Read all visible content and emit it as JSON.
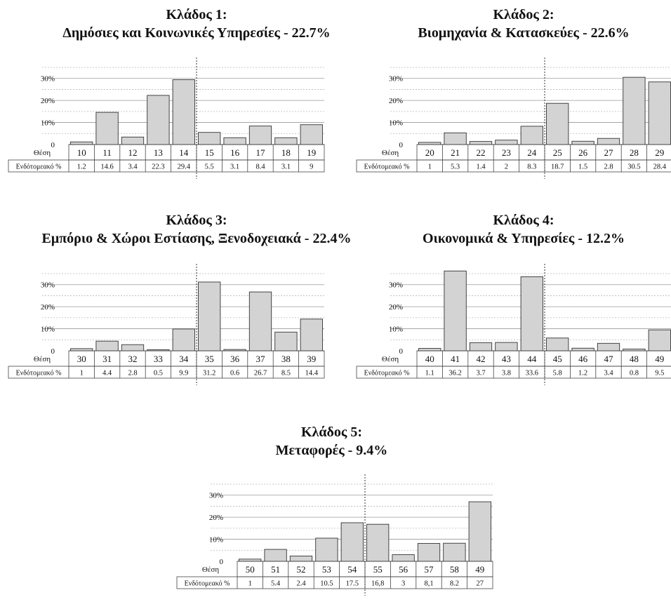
{
  "chart_data": [
    {
      "type": "bar",
      "title_line1": "Κλάδος 1:",
      "title_line2": "Δημόσιες και Κοινωνικές Υπηρεσίες - 22.7%",
      "row1_label": "Θέση",
      "row2_label": "Ενδότομεακό %",
      "y_ticks": [
        "0",
        "10%",
        "20%",
        "30%"
      ],
      "ylim": [
        0,
        35
      ],
      "categories": [
        "10",
        "11",
        "12",
        "13",
        "14",
        "15",
        "16",
        "17",
        "18",
        "19"
      ],
      "values": [
        1.2,
        14.6,
        3.4,
        22.3,
        29.4,
        5.5,
        3.1,
        8.4,
        3.1,
        9
      ],
      "value_labels": [
        "1.2",
        "14.6",
        "3.4",
        "22.3",
        "29.4",
        "5.5",
        "3.1",
        "8.4",
        "3.1",
        "9"
      ],
      "divider_after": 4
    },
    {
      "type": "bar",
      "title_line1": "Κλάδος 2:",
      "title_line2": "Βιομηχανία & Κατασκεύες - 22.6%",
      "row1_label": "Θέση",
      "row2_label": "Ενδότομεακό %",
      "y_ticks": [
        "0",
        "10%",
        "20%",
        "30%"
      ],
      "ylim": [
        0,
        35
      ],
      "categories": [
        "20",
        "21",
        "22",
        "23",
        "24",
        "25",
        "26",
        "27",
        "28",
        "29"
      ],
      "values": [
        1,
        5.3,
        1.4,
        2,
        8.3,
        18.7,
        1.5,
        2.8,
        30.5,
        28.4
      ],
      "value_labels": [
        "1",
        "5.3",
        "1.4",
        "2",
        "8.3",
        "18.7",
        "1.5",
        "2.8",
        "30.5",
        "28.4"
      ],
      "divider_after": 4
    },
    {
      "type": "bar",
      "title_line1": "Κλάδος 3:",
      "title_line2": "Εμπόριο & Χώροι Εστίασης, Ξενοδοχειακά - 22.4%",
      "row1_label": "Θέση",
      "row2_label": "Ενδότομεακό %",
      "y_ticks": [
        "0",
        "10%",
        "20%",
        "30%"
      ],
      "ylim": [
        0,
        35
      ],
      "categories": [
        "30",
        "31",
        "32",
        "33",
        "34",
        "35",
        "36",
        "37",
        "38",
        "39"
      ],
      "values": [
        1,
        4.4,
        2.8,
        0.5,
        9.9,
        31.2,
        0.6,
        26.7,
        8.5,
        14.4
      ],
      "value_labels": [
        "1",
        "4.4",
        "2.8",
        "0.5",
        "9.9",
        "31.2",
        "0.6",
        "26.7",
        "8.5",
        "14.4"
      ],
      "divider_after": 4
    },
    {
      "type": "bar",
      "title_line1": "Κλάδος 4:",
      "title_line2": "Οικονομικά & Υπηρεσίες - 12.2%",
      "row1_label": "Θέση",
      "row2_label": "Ενδότομεακό %",
      "y_ticks": [
        "0",
        "10%",
        "20%",
        "30%"
      ],
      "ylim": [
        0,
        35
      ],
      "categories": [
        "40",
        "41",
        "42",
        "43",
        "44",
        "45",
        "46",
        "47",
        "48",
        "49"
      ],
      "values": [
        1.1,
        36.2,
        3.7,
        3.8,
        33.6,
        5.8,
        1.2,
        3.4,
        0.8,
        9.5
      ],
      "value_labels": [
        "1.1",
        "36.2",
        "3.7",
        "3.8",
        "33.6",
        "5.8",
        "1.2",
        "3.4",
        "0.8",
        "9.5"
      ],
      "divider_after": 4
    },
    {
      "type": "bar",
      "title_line1": "Κλάδος 5:",
      "title_line2": "Μεταφορές - 9.4%",
      "row1_label": "Θέση",
      "row2_label": "Ενδότομεακό %",
      "y_ticks": [
        "0",
        "10%",
        "20%",
        "30%"
      ],
      "ylim": [
        0,
        35
      ],
      "categories": [
        "50",
        "51",
        "52",
        "53",
        "54",
        "55",
        "56",
        "57",
        "58",
        "49"
      ],
      "values": [
        1,
        5.4,
        2.4,
        10.5,
        17.5,
        16.8,
        3,
        8.1,
        8.2,
        27
      ],
      "value_labels": [
        "1",
        "5.4",
        "2.4",
        "10.5",
        "17.5",
        "16,8",
        "3",
        "8,1",
        "8.2",
        "27"
      ],
      "divider_after": 4
    }
  ]
}
